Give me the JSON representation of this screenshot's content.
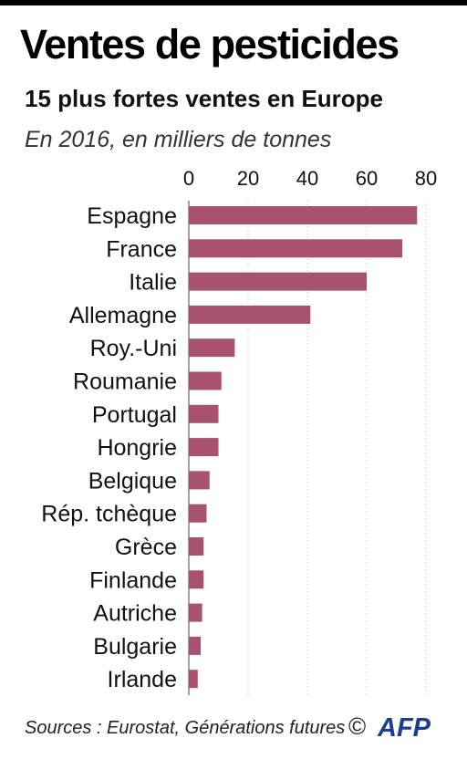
{
  "title": "Ventes de pesticides",
  "subtitle": "15 plus fortes ventes en Europe",
  "note": "En 2016, en milliers de tonnes",
  "source": "Sources : Eurostat, Générations futures",
  "copyright": "©",
  "logo_text": "AFP",
  "colors": {
    "bar": "#a85171",
    "gridline": "#c4c4c4",
    "text": "#111111"
  },
  "chart_data": {
    "type": "bar",
    "orientation": "horizontal",
    "categories": [
      "Espagne",
      "France",
      "Italie",
      "Allemagne",
      "Roy.-Uni",
      "Roumanie",
      "Portugal",
      "Hongrie",
      "Belgique",
      "Rép. tchèque",
      "Grèce",
      "Finlande",
      "Autriche",
      "Bulgarie",
      "Irlande"
    ],
    "values": [
      77,
      72,
      60,
      41,
      15.5,
      11,
      10,
      10,
      7,
      6,
      5,
      5,
      4.5,
      4,
      3
    ],
    "xlim": [
      0,
      80
    ],
    "xticks": [
      "0",
      "20",
      "40",
      "60",
      "80"
    ],
    "tick_position": "top",
    "grid": true
  }
}
